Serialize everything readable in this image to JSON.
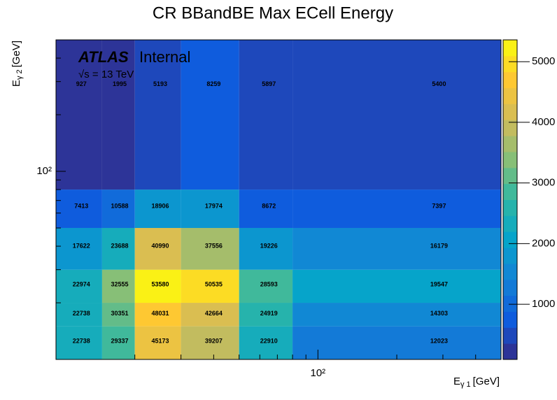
{
  "chart_data": {
    "type": "heatmap",
    "title": "CR BBandBE Max ECell Energy",
    "annotations": [
      "ATLAS",
      "Internal",
      "√s = 13 TeV"
    ],
    "x_label": [
      "E",
      "γ 1",
      "[GeV]"
    ],
    "y_label": [
      "E",
      "γ 2",
      "[GeV]"
    ],
    "xlog": true,
    "ylog": true,
    "x_bins": [
      10,
      15,
      20,
      30,
      50,
      80,
      500
    ],
    "y_bins": [
      10,
      15,
      20,
      30,
      50,
      80,
      500
    ],
    "xlim": [
      10,
      500
    ],
    "ylim": [
      10,
      500
    ],
    "xticks": [
      {
        "value": 100,
        "label": "10²"
      }
    ],
    "yticks": [
      {
        "value": 100,
        "label": "10²"
      }
    ],
    "xminor": [
      20,
      30,
      40,
      50,
      60,
      70,
      80,
      90,
      200,
      300,
      400,
      500
    ],
    "yminor": [
      20,
      30,
      40,
      50,
      60,
      70,
      80,
      90,
      200,
      300,
      400,
      500
    ],
    "values": [
      [
        2274,
        2934,
        4517,
        3921,
        2291,
        1202
      ],
      [
        2274,
        3035,
        4803,
        4266,
        2492,
        1430
      ],
      [
        2297,
        3256,
        5358,
        5054,
        2859,
        1955
      ],
      [
        1762,
        2369,
        4099,
        3756,
        1923,
        1618
      ],
      [
        741,
        1059,
        1891,
        1797,
        867,
        740
      ],
      [
        93,
        200,
        519,
        826,
        590,
        540
      ]
    ],
    "cell_texts": [
      [
        "22738",
        "29337",
        "45173",
        "39207",
        "22910",
        "12023"
      ],
      [
        "22738",
        "30351",
        "48031",
        "42664",
        "24919",
        "14303"
      ],
      [
        "22974",
        "32555",
        "53580",
        "50535",
        "28593",
        "19547"
      ],
      [
        "17622",
        "23688",
        "40990",
        "37556",
        "19226",
        "16179"
      ],
      [
        "7413",
        "10588",
        "18906",
        "17974",
        "8672",
        "7397"
      ],
      [
        "927",
        "1995",
        "5193",
        "8259",
        "5897",
        "5400"
      ]
    ],
    "zlim": [
      90,
      5360
    ],
    "zticks": [
      1000,
      2000,
      3000,
      4000,
      5000
    ],
    "levels": 20,
    "palette": [
      "#352a87",
      "#0f5cdd",
      "#1481d6",
      "#06a4ca",
      "#2eb7a4",
      "#87bf77",
      "#d1bb59",
      "#fec832",
      "#f9fb0e"
    ]
  }
}
